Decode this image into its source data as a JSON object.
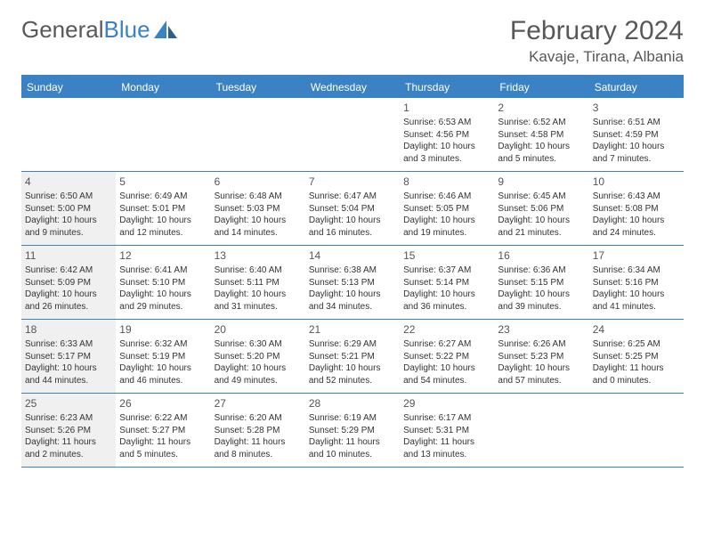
{
  "brand": {
    "part1": "General",
    "part2": "Blue"
  },
  "title": "February 2024",
  "location": "Kavaje, Tirana, Albania",
  "colors": {
    "accent": "#3b82c4",
    "header_text": "#585858",
    "text": "#333333",
    "shaded_bg": "#f0f0f0"
  },
  "weekdays": [
    "Sunday",
    "Monday",
    "Tuesday",
    "Wednesday",
    "Thursday",
    "Friday",
    "Saturday"
  ],
  "weeks": [
    [
      null,
      null,
      null,
      null,
      {
        "n": "1",
        "shaded": false,
        "sunrise": "Sunrise: 6:53 AM",
        "sunset": "Sunset: 4:56 PM",
        "day1": "Daylight: 10 hours",
        "day2": "and 3 minutes."
      },
      {
        "n": "2",
        "shaded": false,
        "sunrise": "Sunrise: 6:52 AM",
        "sunset": "Sunset: 4:58 PM",
        "day1": "Daylight: 10 hours",
        "day2": "and 5 minutes."
      },
      {
        "n": "3",
        "shaded": false,
        "sunrise": "Sunrise: 6:51 AM",
        "sunset": "Sunset: 4:59 PM",
        "day1": "Daylight: 10 hours",
        "day2": "and 7 minutes."
      }
    ],
    [
      {
        "n": "4",
        "shaded": true,
        "sunrise": "Sunrise: 6:50 AM",
        "sunset": "Sunset: 5:00 PM",
        "day1": "Daylight: 10 hours",
        "day2": "and 9 minutes."
      },
      {
        "n": "5",
        "shaded": false,
        "sunrise": "Sunrise: 6:49 AM",
        "sunset": "Sunset: 5:01 PM",
        "day1": "Daylight: 10 hours",
        "day2": "and 12 minutes."
      },
      {
        "n": "6",
        "shaded": false,
        "sunrise": "Sunrise: 6:48 AM",
        "sunset": "Sunset: 5:03 PM",
        "day1": "Daylight: 10 hours",
        "day2": "and 14 minutes."
      },
      {
        "n": "7",
        "shaded": false,
        "sunrise": "Sunrise: 6:47 AM",
        "sunset": "Sunset: 5:04 PM",
        "day1": "Daylight: 10 hours",
        "day2": "and 16 minutes."
      },
      {
        "n": "8",
        "shaded": false,
        "sunrise": "Sunrise: 6:46 AM",
        "sunset": "Sunset: 5:05 PM",
        "day1": "Daylight: 10 hours",
        "day2": "and 19 minutes."
      },
      {
        "n": "9",
        "shaded": false,
        "sunrise": "Sunrise: 6:45 AM",
        "sunset": "Sunset: 5:06 PM",
        "day1": "Daylight: 10 hours",
        "day2": "and 21 minutes."
      },
      {
        "n": "10",
        "shaded": false,
        "sunrise": "Sunrise: 6:43 AM",
        "sunset": "Sunset: 5:08 PM",
        "day1": "Daylight: 10 hours",
        "day2": "and 24 minutes."
      }
    ],
    [
      {
        "n": "11",
        "shaded": true,
        "sunrise": "Sunrise: 6:42 AM",
        "sunset": "Sunset: 5:09 PM",
        "day1": "Daylight: 10 hours",
        "day2": "and 26 minutes."
      },
      {
        "n": "12",
        "shaded": false,
        "sunrise": "Sunrise: 6:41 AM",
        "sunset": "Sunset: 5:10 PM",
        "day1": "Daylight: 10 hours",
        "day2": "and 29 minutes."
      },
      {
        "n": "13",
        "shaded": false,
        "sunrise": "Sunrise: 6:40 AM",
        "sunset": "Sunset: 5:11 PM",
        "day1": "Daylight: 10 hours",
        "day2": "and 31 minutes."
      },
      {
        "n": "14",
        "shaded": false,
        "sunrise": "Sunrise: 6:38 AM",
        "sunset": "Sunset: 5:13 PM",
        "day1": "Daylight: 10 hours",
        "day2": "and 34 minutes."
      },
      {
        "n": "15",
        "shaded": false,
        "sunrise": "Sunrise: 6:37 AM",
        "sunset": "Sunset: 5:14 PM",
        "day1": "Daylight: 10 hours",
        "day2": "and 36 minutes."
      },
      {
        "n": "16",
        "shaded": false,
        "sunrise": "Sunrise: 6:36 AM",
        "sunset": "Sunset: 5:15 PM",
        "day1": "Daylight: 10 hours",
        "day2": "and 39 minutes."
      },
      {
        "n": "17",
        "shaded": false,
        "sunrise": "Sunrise: 6:34 AM",
        "sunset": "Sunset: 5:16 PM",
        "day1": "Daylight: 10 hours",
        "day2": "and 41 minutes."
      }
    ],
    [
      {
        "n": "18",
        "shaded": true,
        "sunrise": "Sunrise: 6:33 AM",
        "sunset": "Sunset: 5:17 PM",
        "day1": "Daylight: 10 hours",
        "day2": "and 44 minutes."
      },
      {
        "n": "19",
        "shaded": false,
        "sunrise": "Sunrise: 6:32 AM",
        "sunset": "Sunset: 5:19 PM",
        "day1": "Daylight: 10 hours",
        "day2": "and 46 minutes."
      },
      {
        "n": "20",
        "shaded": false,
        "sunrise": "Sunrise: 6:30 AM",
        "sunset": "Sunset: 5:20 PM",
        "day1": "Daylight: 10 hours",
        "day2": "and 49 minutes."
      },
      {
        "n": "21",
        "shaded": false,
        "sunrise": "Sunrise: 6:29 AM",
        "sunset": "Sunset: 5:21 PM",
        "day1": "Daylight: 10 hours",
        "day2": "and 52 minutes."
      },
      {
        "n": "22",
        "shaded": false,
        "sunrise": "Sunrise: 6:27 AM",
        "sunset": "Sunset: 5:22 PM",
        "day1": "Daylight: 10 hours",
        "day2": "and 54 minutes."
      },
      {
        "n": "23",
        "shaded": false,
        "sunrise": "Sunrise: 6:26 AM",
        "sunset": "Sunset: 5:23 PM",
        "day1": "Daylight: 10 hours",
        "day2": "and 57 minutes."
      },
      {
        "n": "24",
        "shaded": false,
        "sunrise": "Sunrise: 6:25 AM",
        "sunset": "Sunset: 5:25 PM",
        "day1": "Daylight: 11 hours",
        "day2": "and 0 minutes."
      }
    ],
    [
      {
        "n": "25",
        "shaded": true,
        "sunrise": "Sunrise: 6:23 AM",
        "sunset": "Sunset: 5:26 PM",
        "day1": "Daylight: 11 hours",
        "day2": "and 2 minutes."
      },
      {
        "n": "26",
        "shaded": false,
        "sunrise": "Sunrise: 6:22 AM",
        "sunset": "Sunset: 5:27 PM",
        "day1": "Daylight: 11 hours",
        "day2": "and 5 minutes."
      },
      {
        "n": "27",
        "shaded": false,
        "sunrise": "Sunrise: 6:20 AM",
        "sunset": "Sunset: 5:28 PM",
        "day1": "Daylight: 11 hours",
        "day2": "and 8 minutes."
      },
      {
        "n": "28",
        "shaded": false,
        "sunrise": "Sunrise: 6:19 AM",
        "sunset": "Sunset: 5:29 PM",
        "day1": "Daylight: 11 hours",
        "day2": "and 10 minutes."
      },
      {
        "n": "29",
        "shaded": false,
        "sunrise": "Sunrise: 6:17 AM",
        "sunset": "Sunset: 5:31 PM",
        "day1": "Daylight: 11 hours",
        "day2": "and 13 minutes."
      },
      null,
      null
    ]
  ]
}
